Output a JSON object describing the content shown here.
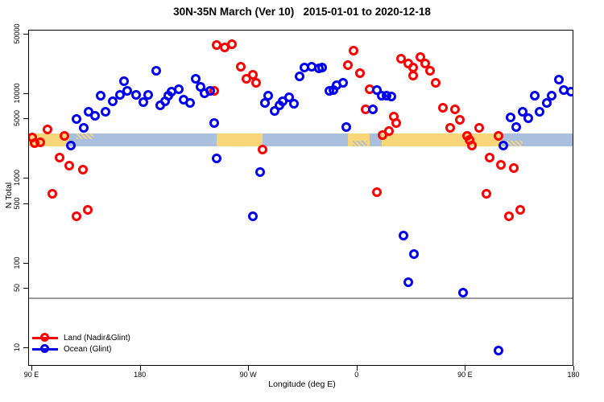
{
  "title": "30N-35N March (Ver 10)   2015-01-01 to 2020-12-18",
  "colors": {
    "land": "#FF0000",
    "ocean": "#0000EE",
    "band_land": "#FAD67B",
    "band_ocean": "#AABEDE",
    "reference_line": "#9A9A9A"
  },
  "legend": {
    "items": [
      {
        "label": "Land (Nadir&Glint)",
        "series": "land"
      },
      {
        "label": "Ocean (Glint)",
        "series": "ocean"
      }
    ]
  },
  "chart_data": {
    "type": "scatter",
    "title": "30N-35N March (Ver 10)   2015-01-01 to 2020-12-18",
    "xlabel": "Longitude (deg E)",
    "ylabel": "N Total",
    "x_axis": {
      "note": "longitude axis wraps: 90E eastward to 180 (450 deg span)",
      "ticks": [
        90,
        180,
        270,
        360,
        450,
        540
      ],
      "tick_labels": [
        "90 E",
        "180",
        "90 W",
        "0",
        "90 E",
        "180"
      ],
      "range": [
        87,
        540
      ]
    },
    "y_axis": {
      "scale": "log",
      "ticks": [
        50000,
        10000,
        5000,
        1000,
        500,
        100,
        50,
        10
      ],
      "tick_labels": [
        "50000",
        "10000",
        "5000",
        "1000",
        "500",
        "100",
        "50",
        "10"
      ],
      "range": [
        6,
        55000
      ]
    },
    "grid": false,
    "legend_position": "bottom-left",
    "reference_line": {
      "value": 40
    },
    "surface_band": {
      "value_range": [
        2400,
        3400
      ],
      "segments": [
        {
          "type": "land",
          "lon": [
            87,
            121
          ]
        },
        {
          "type": "ocean",
          "lon": [
            121,
            243
          ]
        },
        {
          "type": "land",
          "lon": [
            243,
            281
          ]
        },
        {
          "type": "ocean",
          "lon": [
            281,
            352
          ]
        },
        {
          "type": "land",
          "lon": [
            352,
            370
          ]
        },
        {
          "type": "ocean",
          "lon": [
            370,
            380
          ]
        },
        {
          "type": "land",
          "lon": [
            380,
            480
          ]
        },
        {
          "type": "ocean",
          "lon": [
            480,
            540
          ]
        }
      ],
      "speckles": [
        {
          "type": "land",
          "lon": [
            127,
            141
          ],
          "edge": "top"
        },
        {
          "type": "ocean",
          "lon": [
            356,
            368
          ],
          "edge": "bottom"
        },
        {
          "type": "land",
          "lon": [
            484,
            497
          ],
          "edge": "bottom"
        }
      ]
    },
    "series": [
      {
        "name": "Land (Nadir&Glint)",
        "key": "land",
        "points": [
          [
            90,
            3050
          ],
          [
            92,
            2620
          ],
          [
            97,
            2680
          ],
          [
            103,
            3800
          ],
          [
            117,
            3190
          ],
          [
            113,
            1770
          ],
          [
            121,
            1420
          ],
          [
            132,
            1270
          ],
          [
            107,
            660
          ],
          [
            136,
            430
          ],
          [
            127,
            360
          ],
          [
            243,
            37700
          ],
          [
            250,
            35200
          ],
          [
            256,
            38500
          ],
          [
            241,
            10800
          ],
          [
            263,
            20900
          ],
          [
            268,
            15000
          ],
          [
            273,
            16800
          ],
          [
            276,
            13500
          ],
          [
            281,
            2200
          ],
          [
            352,
            21800
          ],
          [
            357,
            32300
          ],
          [
            362,
            17500
          ],
          [
            370,
            11300
          ],
          [
            367,
            6560
          ],
          [
            381,
            3260
          ],
          [
            386,
            3630
          ],
          [
            390,
            5390
          ],
          [
            392,
            4520
          ],
          [
            376,
            690
          ],
          [
            396,
            26000
          ],
          [
            402,
            22800
          ],
          [
            406,
            20400
          ],
          [
            406,
            16400
          ],
          [
            412,
            27100
          ],
          [
            416,
            22800
          ],
          [
            420,
            18700
          ],
          [
            425,
            13500
          ],
          [
            431,
            6850
          ],
          [
            437,
            3960
          ],
          [
            441,
            6560
          ],
          [
            445,
            4930
          ],
          [
            451,
            3190
          ],
          [
            453,
            2860
          ],
          [
            455,
            2450
          ],
          [
            461,
            3960
          ],
          [
            467,
            660
          ],
          [
            470,
            1770
          ],
          [
            477,
            3190
          ],
          [
            479,
            1450
          ],
          [
            486,
            360
          ],
          [
            490,
            1330
          ],
          [
            495,
            430
          ]
        ]
      },
      {
        "name": "Ocean (Glint)",
        "key": "ocean",
        "points": [
          [
            122,
            2450
          ],
          [
            127,
            5050
          ],
          [
            133,
            3960
          ],
          [
            137,
            6140
          ],
          [
            142,
            5510
          ],
          [
            147,
            9510
          ],
          [
            151,
            6140
          ],
          [
            157,
            8150
          ],
          [
            163,
            9720
          ],
          [
            166,
            14100
          ],
          [
            169,
            10800
          ],
          [
            176,
            9720
          ],
          [
            182,
            8000
          ],
          [
            186,
            9720
          ],
          [
            193,
            18700
          ],
          [
            196,
            7300
          ],
          [
            200,
            8150
          ],
          [
            203,
            9510
          ],
          [
            206,
            10600
          ],
          [
            212,
            11300
          ],
          [
            216,
            8500
          ],
          [
            221,
            7850
          ],
          [
            226,
            15000
          ],
          [
            230,
            12100
          ],
          [
            233,
            10200
          ],
          [
            238,
            10800
          ],
          [
            241,
            4520
          ],
          [
            243,
            1740
          ],
          [
            273,
            360
          ],
          [
            279,
            1190
          ],
          [
            283,
            7850
          ],
          [
            286,
            9510
          ],
          [
            291,
            6280
          ],
          [
            295,
            7300
          ],
          [
            298,
            8150
          ],
          [
            303,
            9080
          ],
          [
            307,
            7680
          ],
          [
            312,
            16100
          ],
          [
            316,
            20400
          ],
          [
            322,
            20900
          ],
          [
            328,
            20000
          ],
          [
            331,
            20400
          ],
          [
            337,
            10800
          ],
          [
            340,
            11100
          ],
          [
            343,
            12700
          ],
          [
            348,
            13500
          ],
          [
            351,
            4050
          ],
          [
            373,
            6560
          ],
          [
            376,
            11100
          ],
          [
            380,
            9510
          ],
          [
            384,
            9510
          ],
          [
            388,
            9300
          ],
          [
            398,
            212
          ],
          [
            402,
            60
          ],
          [
            407,
            128
          ],
          [
            448,
            45
          ],
          [
            477,
            9.4
          ],
          [
            481,
            2450
          ],
          [
            487,
            5280
          ],
          [
            492,
            4100
          ],
          [
            497,
            6140
          ],
          [
            502,
            5160
          ],
          [
            507,
            9510
          ],
          [
            511,
            6140
          ],
          [
            517,
            7850
          ],
          [
            521,
            9510
          ],
          [
            527,
            14800
          ],
          [
            531,
            11100
          ],
          [
            537,
            10600
          ]
        ]
      }
    ]
  }
}
